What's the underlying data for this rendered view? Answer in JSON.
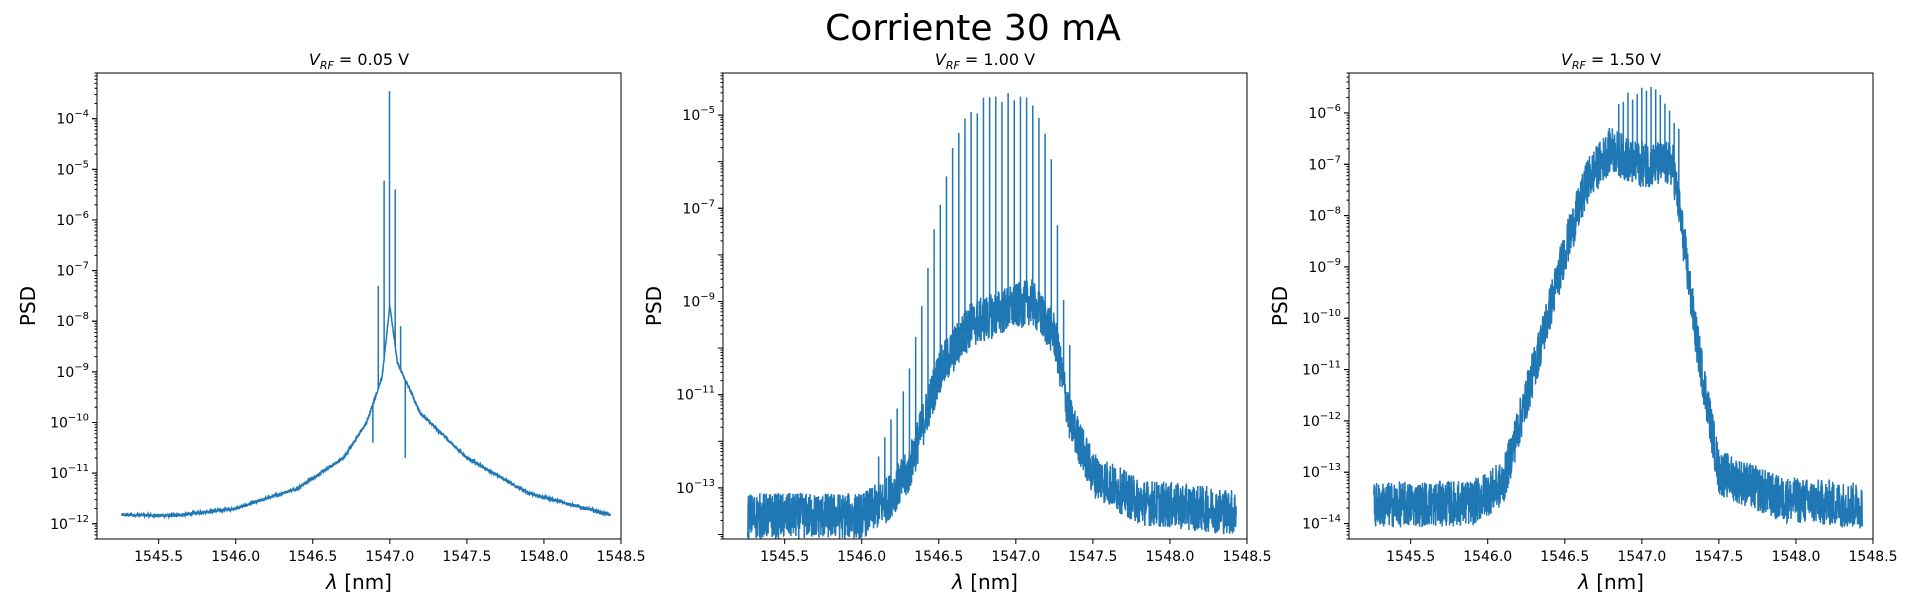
{
  "figure": {
    "title": "Corriente 30 mA",
    "line_color": "#1f77b4"
  },
  "chart_data": [
    {
      "type": "line",
      "title_prefix": "V",
      "title_subscript": "RF",
      "title_value": " =  0.05 V",
      "xlabel_symbol": "λ",
      "xlabel_unit": " [nm]",
      "ylabel": "PSD",
      "yscale": "log",
      "xlim": [
        1545.1,
        1548.5
      ],
      "ylim": [
        5e-13,
        0.0008
      ],
      "xticks": [
        1545.5,
        1546.0,
        1546.5,
        1547.0,
        1547.5,
        1548.0,
        1548.5
      ],
      "yticks_exp": [
        -12,
        -11,
        -10,
        -9,
        -8,
        -7,
        -6,
        -5,
        -4
      ],
      "x_range": [
        1545.26,
        1548.43
      ],
      "baseline_points": [
        [
          1545.26,
          1.5e-12
        ],
        [
          1545.6,
          1.45e-12
        ],
        [
          1546.0,
          2e-12
        ],
        [
          1546.4,
          5e-12
        ],
        [
          1546.7,
          2e-11
        ],
        [
          1546.85,
          1e-10
        ],
        [
          1546.95,
          8e-10
        ],
        [
          1547.0,
          2e-08
        ],
        [
          1547.05,
          1.5e-09
        ],
        [
          1547.2,
          1.5e-10
        ],
        [
          1547.5,
          2e-11
        ],
        [
          1547.9,
          4e-12
        ],
        [
          1548.43,
          1.5e-12
        ]
      ],
      "noise_decades": 0.03,
      "peaks": [
        [
          1546.998,
          0.00035
        ],
        [
          1546.963,
          6e-06
        ],
        [
          1547.035,
          4e-06
        ],
        [
          1546.925,
          5e-08
        ],
        [
          1547.07,
          8e-09
        ],
        [
          1546.89,
          4e-11
        ],
        [
          1547.1,
          2e-11
        ]
      ]
    },
    {
      "type": "line",
      "title_prefix": "V",
      "title_subscript": "RF",
      "title_value": " =  1.00 V",
      "xlabel_symbol": "λ",
      "xlabel_unit": " [nm]",
      "ylabel": "PSD",
      "yscale": "log",
      "xlim": [
        1545.1,
        1548.5
      ],
      "ylim": [
        8e-15,
        8e-05
      ],
      "xticks": [
        1545.5,
        1546.0,
        1546.5,
        1547.0,
        1547.5,
        1548.0,
        1548.5
      ],
      "yticks_exp": [
        -13,
        -11,
        -9,
        -7,
        -5
      ],
      "x_range": [
        1545.26,
        1548.43
      ],
      "baseline_points": [
        [
          1545.26,
          2.5e-14
        ],
        [
          1546.0,
          2.5e-14
        ],
        [
          1546.15,
          5e-14
        ],
        [
          1546.3,
          2e-13
        ],
        [
          1546.5,
          3e-11
        ],
        [
          1546.7,
          3e-10
        ],
        [
          1546.9,
          6e-10
        ],
        [
          1547.1,
          1e-09
        ],
        [
          1547.25,
          2e-10
        ],
        [
          1547.35,
          3e-12
        ],
        [
          1547.5,
          2e-13
        ],
        [
          1547.8,
          5e-14
        ],
        [
          1548.43,
          3e-14
        ]
      ],
      "noise_decades": 0.5,
      "comb": {
        "start": 1546.11,
        "end": 1547.38,
        "spacing": 0.04
      },
      "comb_env": [
        [
          1546.1,
          5e-13
        ],
        [
          1546.3,
          2e-11
        ],
        [
          1546.5,
          1e-07
        ],
        [
          1546.6,
          3e-06
        ],
        [
          1546.7,
          1e-05
        ],
        [
          1546.8,
          2e-05
        ],
        [
          1547.05,
          3e-05
        ],
        [
          1547.15,
          1e-05
        ],
        [
          1547.25,
          5e-07
        ],
        [
          1547.3,
          2e-09
        ],
        [
          1547.38,
          3e-11
        ]
      ]
    },
    {
      "type": "line",
      "title_prefix": "V",
      "title_subscript": "RF",
      "title_value": " =  1.50 V",
      "xlabel_symbol": "λ",
      "xlabel_unit": " [nm]",
      "ylabel": "PSD",
      "yscale": "log",
      "xlim": [
        1545.1,
        1548.5
      ],
      "ylim": [
        5e-15,
        6e-06
      ],
      "xticks": [
        1545.5,
        1546.0,
        1546.5,
        1547.0,
        1547.5,
        1548.0,
        1548.5
      ],
      "yticks_exp": [
        -14,
        -13,
        -12,
        -11,
        -10,
        -9,
        -8,
        -7,
        -6
      ],
      "x_range": [
        1545.26,
        1548.43
      ],
      "baseline_points": [
        [
          1545.26,
          2.3e-14
        ],
        [
          1545.9,
          2.5e-14
        ],
        [
          1546.1,
          6e-14
        ],
        [
          1546.3,
          1e-11
        ],
        [
          1546.5,
          2e-09
        ],
        [
          1546.65,
          5e-08
        ],
        [
          1546.8,
          2e-07
        ],
        [
          1546.95,
          1e-07
        ],
        [
          1547.2,
          1e-07
        ],
        [
          1547.25,
          1e-08
        ],
        [
          1547.35,
          5e-11
        ],
        [
          1547.5,
          1e-13
        ],
        [
          1547.9,
          3e-14
        ],
        [
          1548.43,
          2.2e-14
        ]
      ],
      "noise_decades": 0.45,
      "comb": {
        "start": 1546.85,
        "end": 1547.25,
        "spacing": 0.03
      },
      "comb_env": [
        [
          1546.85,
          1.5e-06
        ],
        [
          1546.95,
          2.5e-06
        ],
        [
          1547.1,
          2.5e-06
        ],
        [
          1547.25,
          5e-07
        ]
      ]
    }
  ]
}
